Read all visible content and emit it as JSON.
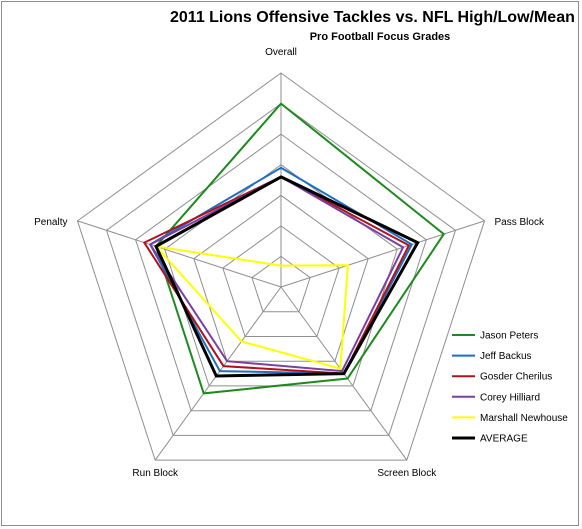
{
  "chart_data": {
    "type": "radar",
    "title": "2011 Lions Offensive Tackles vs. NFL High/Low/Mean",
    "subtitle": "Pro Football Focus Grades",
    "axes": [
      "Overall",
      "Pass Block",
      "Screen Block",
      "Run Block",
      "Penalty"
    ],
    "ring_count": 7,
    "grid": true,
    "legend_position": "right",
    "series": [
      {
        "name": "Jason Peters",
        "color": "#1e8a1e",
        "values": [
          6.0,
          5.6,
          3.7,
          4.3,
          4.3
        ]
      },
      {
        "name": "Jeff Backus",
        "color": "#1f6fc0",
        "values": [
          3.9,
          4.5,
          3.5,
          3.4,
          4.5
        ]
      },
      {
        "name": "Gosder Cherilus",
        "color": "#b0121b",
        "values": [
          3.6,
          4.4,
          3.5,
          3.2,
          4.7
        ]
      },
      {
        "name": "Corey Hilliard",
        "color": "#7b3fa0",
        "values": [
          3.6,
          4.2,
          3.4,
          3.0,
          4.5
        ]
      },
      {
        "name": "Marshall Newhouse",
        "color": "#ffff00",
        "values": [
          0.7,
          2.3,
          3.3,
          2.2,
          4.3
        ]
      },
      {
        "name": "AVERAGE",
        "color": "#000000",
        "values": [
          3.6,
          4.7,
          3.5,
          3.6,
          4.3
        ]
      }
    ]
  }
}
